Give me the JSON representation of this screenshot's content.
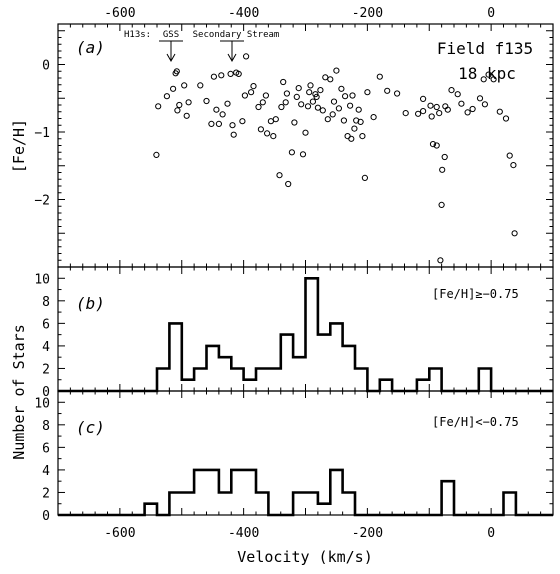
{
  "chart_data": [
    {
      "panel": "a",
      "type": "scatter",
      "panel_label": "(a)",
      "ylabel": "[Fe/H]",
      "xlabel": "",
      "xlim": [
        -700,
        100
      ],
      "ylim": [
        -3.0,
        0.6
      ],
      "x_ticks": [
        -600,
        -400,
        -200,
        0
      ],
      "y_ticks": [
        0,
        -1,
        -2
      ],
      "field_label": "Field f135",
      "distance_label": "18 kpc",
      "annotation_prefix": "H13s:",
      "annotations": [
        {
          "label": "GSS",
          "x": -510
        },
        {
          "label": "Secondary Stream",
          "x": -420
        }
      ],
      "points": [
        [
          -541,
          -1.34
        ],
        [
          -538,
          -0.62
        ],
        [
          -524,
          -0.47
        ],
        [
          -514,
          -0.36
        ],
        [
          -510,
          -0.13
        ],
        [
          -508,
          -0.1
        ],
        [
          -507,
          -0.68
        ],
        [
          -504,
          -0.6
        ],
        [
          -496,
          -0.31
        ],
        [
          -492,
          -0.76
        ],
        [
          -489,
          -0.56
        ],
        [
          -470,
          -0.31
        ],
        [
          -460,
          -0.54
        ],
        [
          -452,
          -0.88
        ],
        [
          -448,
          -0.18
        ],
        [
          -444,
          -0.67
        ],
        [
          -440,
          -0.88
        ],
        [
          -436,
          -0.16
        ],
        [
          -434,
          -0.74
        ],
        [
          -426,
          -0.58
        ],
        [
          -421,
          -0.14
        ],
        [
          -418,
          -0.9
        ],
        [
          -416,
          -1.04
        ],
        [
          -412,
          -0.12
        ],
        [
          -408,
          -0.14
        ],
        [
          -402,
          -0.84
        ],
        [
          -398,
          -0.46
        ],
        [
          -396,
          0.12
        ],
        [
          -388,
          -0.41
        ],
        [
          -384,
          -0.32
        ],
        [
          -376,
          -0.63
        ],
        [
          -372,
          -0.96
        ],
        [
          -369,
          -0.56
        ],
        [
          -364,
          -0.46
        ],
        [
          -362,
          -1.02
        ],
        [
          -356,
          -0.84
        ],
        [
          -352,
          -1.06
        ],
        [
          -348,
          -0.81
        ],
        [
          -342,
          -1.64
        ],
        [
          -339,
          -0.63
        ],
        [
          -336,
          -0.26
        ],
        [
          -332,
          -0.56
        ],
        [
          -330,
          -0.43
        ],
        [
          -328,
          -1.77
        ],
        [
          -322,
          -1.3
        ],
        [
          -318,
          -0.86
        ],
        [
          -314,
          -0.48
        ],
        [
          -311,
          -0.35
        ],
        [
          -307,
          -0.59
        ],
        [
          -304,
          -1.33
        ],
        [
          -300,
          -1.01
        ],
        [
          -296,
          -0.62
        ],
        [
          -294,
          -0.41
        ],
        [
          -292,
          -0.31
        ],
        [
          -288,
          -0.55
        ],
        [
          -284,
          -0.44
        ],
        [
          -282,
          -0.48
        ],
        [
          -280,
          -0.64
        ],
        [
          -276,
          -0.38
        ],
        [
          -272,
          -0.68
        ],
        [
          -268,
          -0.19
        ],
        [
          -264,
          -0.81
        ],
        [
          -260,
          -0.22
        ],
        [
          -256,
          -0.74
        ],
        [
          -254,
          -0.55
        ],
        [
          -250,
          -0.09
        ],
        [
          -246,
          -0.65
        ],
        [
          -242,
          -0.36
        ],
        [
          -238,
          -0.83
        ],
        [
          -236,
          -0.47
        ],
        [
          -232,
          -1.06
        ],
        [
          -228,
          -0.61
        ],
        [
          -226,
          -1.1
        ],
        [
          -224,
          -0.46
        ],
        [
          -221,
          -0.95
        ],
        [
          -218,
          -0.83
        ],
        [
          -214,
          -0.67
        ],
        [
          -211,
          -0.85
        ],
        [
          -208,
          -1.06
        ],
        [
          -204,
          -1.68
        ],
        [
          -200,
          -0.41
        ],
        [
          -190,
          -0.78
        ],
        [
          -180,
          -0.18
        ],
        [
          -168,
          -0.39
        ],
        [
          -152,
          -0.43
        ],
        [
          -138,
          -0.72
        ],
        [
          -118,
          -0.73
        ],
        [
          -110,
          -0.51
        ],
        [
          -96,
          -0.77
        ],
        [
          -94,
          -1.18
        ],
        [
          -88,
          -1.2
        ],
        [
          -84,
          -0.72
        ],
        [
          -79,
          -1.56
        ],
        [
          -74,
          -0.62
        ],
        [
          -70,
          -0.67
        ],
        [
          -64,
          -0.38
        ],
        [
          -54,
          -0.44
        ],
        [
          -48,
          -0.58
        ],
        [
          -38,
          -0.71
        ],
        [
          -30,
          -0.66
        ],
        [
          -18,
          -0.5
        ],
        [
          -10,
          -0.59
        ],
        [
          -4,
          -0.15
        ],
        [
          4,
          -0.22
        ],
        [
          14,
          -0.7
        ],
        [
          24,
          -0.8
        ],
        [
          30,
          -1.35
        ],
        [
          -110,
          -0.69
        ],
        [
          -98,
          -0.61
        ],
        [
          -88,
          -0.63
        ],
        [
          -80,
          -2.08
        ],
        [
          -75,
          -1.37
        ],
        [
          -82,
          -2.9
        ],
        [
          -12,
          -0.22
        ],
        [
          36,
          -1.49
        ],
        [
          38,
          -2.5
        ]
      ]
    },
    {
      "panel": "b",
      "type": "histogram",
      "panel_label": "(b)",
      "condition_label": "[Fe/H]≥−0.75",
      "ylabel": "Number of Stars",
      "ylim": [
        0,
        11
      ],
      "y_ticks": [
        0,
        2,
        4,
        6,
        8,
        10
      ],
      "xlim": [
        -700,
        100
      ],
      "x_ticks": [
        -600,
        -400,
        -200,
        0
      ],
      "bin_edges": [
        -700,
        -540,
        -520,
        -500,
        -480,
        -460,
        -440,
        -420,
        -400,
        -380,
        -340,
        -320,
        -300,
        -280,
        -260,
        -240,
        -220,
        -200,
        -180,
        -160,
        -120,
        -100,
        -80,
        -20,
        0,
        100
      ],
      "counts": [
        0,
        2,
        6,
        1,
        2,
        4,
        3,
        2,
        1,
        2,
        5,
        3,
        10,
        5,
        6,
        4,
        2,
        0,
        1,
        0,
        1,
        2,
        0,
        2,
        0
      ]
    },
    {
      "panel": "c",
      "type": "histogram",
      "panel_label": "(c)",
      "condition_label": "[Fe/H]<−0.75",
      "ylabel": "",
      "ylim": [
        0,
        11
      ],
      "y_ticks": [
        0,
        2,
        4,
        6,
        8,
        10
      ],
      "xlim": [
        -700,
        100
      ],
      "x_ticks": [
        -600,
        -400,
        -200,
        0
      ],
      "xlabel": "Velocity (km/s)",
      "bin_edges": [
        -700,
        -560,
        -540,
        -520,
        -480,
        -440,
        -420,
        -380,
        -360,
        -320,
        -280,
        -260,
        -240,
        -220,
        -80,
        -60,
        20,
        40,
        100
      ],
      "counts": [
        0,
        1,
        0,
        2,
        4,
        2,
        4,
        2,
        0,
        2,
        1,
        4,
        2,
        0,
        3,
        0,
        2,
        0
      ]
    }
  ]
}
